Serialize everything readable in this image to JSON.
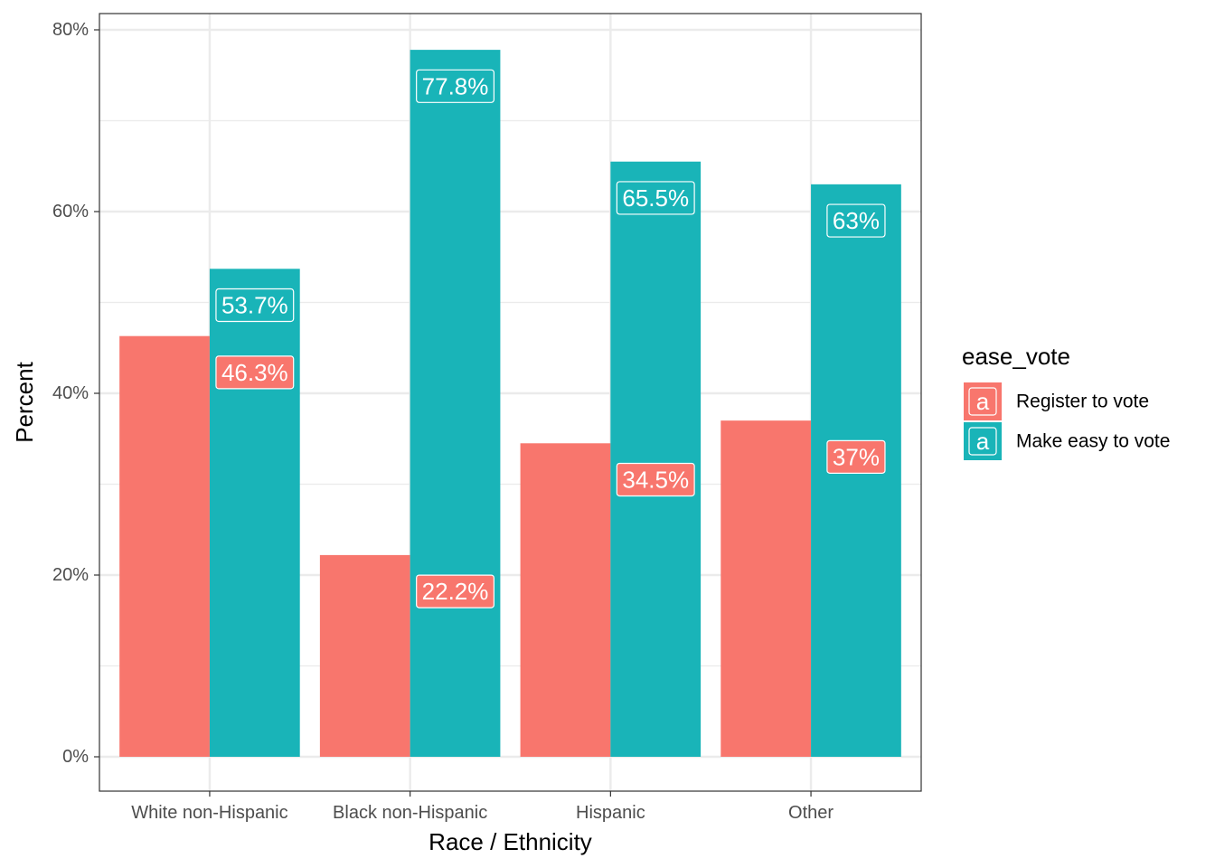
{
  "chart_data": {
    "type": "bar",
    "categories": [
      "White non-Hispanic",
      "Black non-Hispanic",
      "Hispanic",
      "Other"
    ],
    "series": [
      {
        "name": "Register to vote",
        "color": "#F8766D",
        "values": [
          46.3,
          22.2,
          34.5,
          37
        ],
        "labels": [
          "46.3%",
          "22.2%",
          "34.5%",
          "37%"
        ]
      },
      {
        "name": "Make easy to vote",
        "color": "#19B4B8",
        "values": [
          53.7,
          77.8,
          65.5,
          63
        ],
        "labels": [
          "53.7%",
          "77.8%",
          "65.5%",
          "63%"
        ]
      }
    ],
    "title": "",
    "xlabel": "Race / Ethnicity",
    "ylabel": "Percent",
    "ylim": [
      0,
      80
    ],
    "yticks": [
      0,
      20,
      40,
      60,
      80
    ],
    "ytick_labels": [
      "0%",
      "20%",
      "40%",
      "60%",
      "80%"
    ],
    "grid": true,
    "legend": {
      "title": "ease_vote",
      "position": "right",
      "key_glyph": "a"
    }
  }
}
